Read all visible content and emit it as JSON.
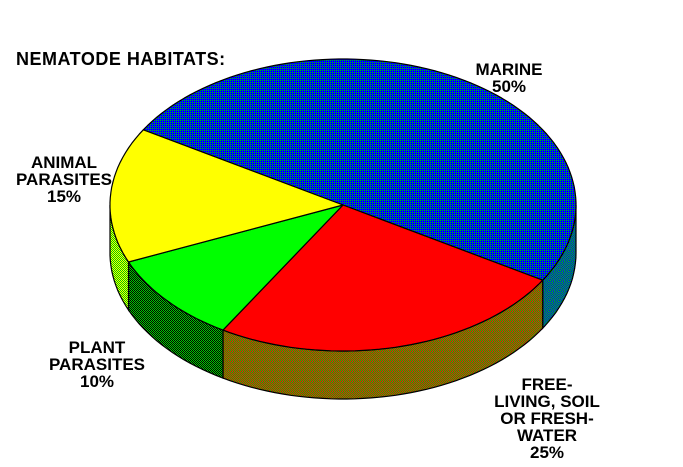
{
  "background": "#ffffff",
  "text_color": "#000000",
  "chart_data": {
    "type": "pie",
    "title": "NEMATODE HABITATS:",
    "style": "3d-dithered-pie",
    "start_angle_deg": 149,
    "clockwise": true,
    "legend_position": "labels-around-pie",
    "slices": [
      {
        "label": "MARINE",
        "value": 50,
        "value_label": "50%",
        "color": "#0000ff",
        "top_style": "dotted",
        "dot_color": "#00cc00",
        "side_checker": [
          "#0000ff",
          "#00cc00"
        ],
        "label_lines": [
          "MARINE",
          "50%"
        ]
      },
      {
        "label": "FREE-LIVING, SOIL OR FRESH-WATER",
        "value": 25,
        "value_label": "25%",
        "color": "#ff0000",
        "top_style": "solid",
        "side_checker": [
          "#ff0000",
          "#00cc00"
        ],
        "label_lines": [
          "FREE-",
          "LIVING, SOIL",
          "OR FRESH-",
          "WATER",
          "25%"
        ]
      },
      {
        "label": "PLANT PARASITES",
        "value": 10,
        "value_label": "10%",
        "color": "#00ff00",
        "top_style": "solid",
        "side_checker": [
          "#00cc00",
          "#000000"
        ],
        "label_lines": [
          "PLANT",
          "PARASITES",
          "10%"
        ]
      },
      {
        "label": "ANIMAL PARASITES",
        "value": 15,
        "value_label": "15%",
        "color": "#ffff00",
        "top_style": "solid",
        "side_checker": [
          "#ffff00",
          "#00cc00"
        ],
        "label_lines": [
          "ANIMAL",
          "PARASITES",
          "15%"
        ]
      }
    ],
    "outline_color": "#000000"
  }
}
